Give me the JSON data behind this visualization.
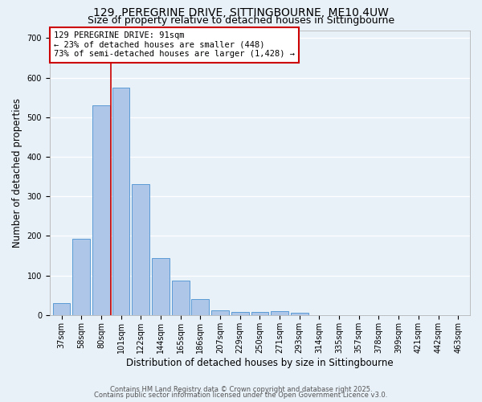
{
  "title1": "129, PEREGRINE DRIVE, SITTINGBOURNE, ME10 4UW",
  "title2": "Size of property relative to detached houses in Sittingbourne",
  "xlabel": "Distribution of detached houses by size in Sittingbourne",
  "ylabel": "Number of detached properties",
  "categories": [
    "37sqm",
    "58sqm",
    "80sqm",
    "101sqm",
    "122sqm",
    "144sqm",
    "165sqm",
    "186sqm",
    "207sqm",
    "229sqm",
    "250sqm",
    "271sqm",
    "293sqm",
    "314sqm",
    "335sqm",
    "357sqm",
    "378sqm",
    "399sqm",
    "421sqm",
    "442sqm",
    "463sqm"
  ],
  "values": [
    30,
    193,
    530,
    575,
    330,
    145,
    87,
    40,
    12,
    8,
    8,
    10,
    5,
    0,
    0,
    0,
    0,
    0,
    0,
    0,
    0
  ],
  "bar_color": "#aec6e8",
  "bar_edge_color": "#5b9bd5",
  "background_color": "#e8f0f8",
  "grid_color": "#ffffff",
  "vline_x": 2.5,
  "vline_color": "#cc0000",
  "annotation_text": "129 PEREGRINE DRIVE: 91sqm\n← 23% of detached houses are smaller (448)\n73% of semi-detached houses are larger (1,428) →",
  "annotation_box_color": "#ffffff",
  "annotation_box_edge_color": "#cc0000",
  "ylim": [
    0,
    720
  ],
  "yticks": [
    0,
    100,
    200,
    300,
    400,
    500,
    600,
    700
  ],
  "footer1": "Contains HM Land Registry data © Crown copyright and database right 2025.",
  "footer2": "Contains public sector information licensed under the Open Government Licence v3.0.",
  "title1_fontsize": 10,
  "title2_fontsize": 9,
  "axis_label_fontsize": 8.5,
  "tick_fontsize": 7,
  "annotation_fontsize": 7.5,
  "footer_fontsize": 6
}
